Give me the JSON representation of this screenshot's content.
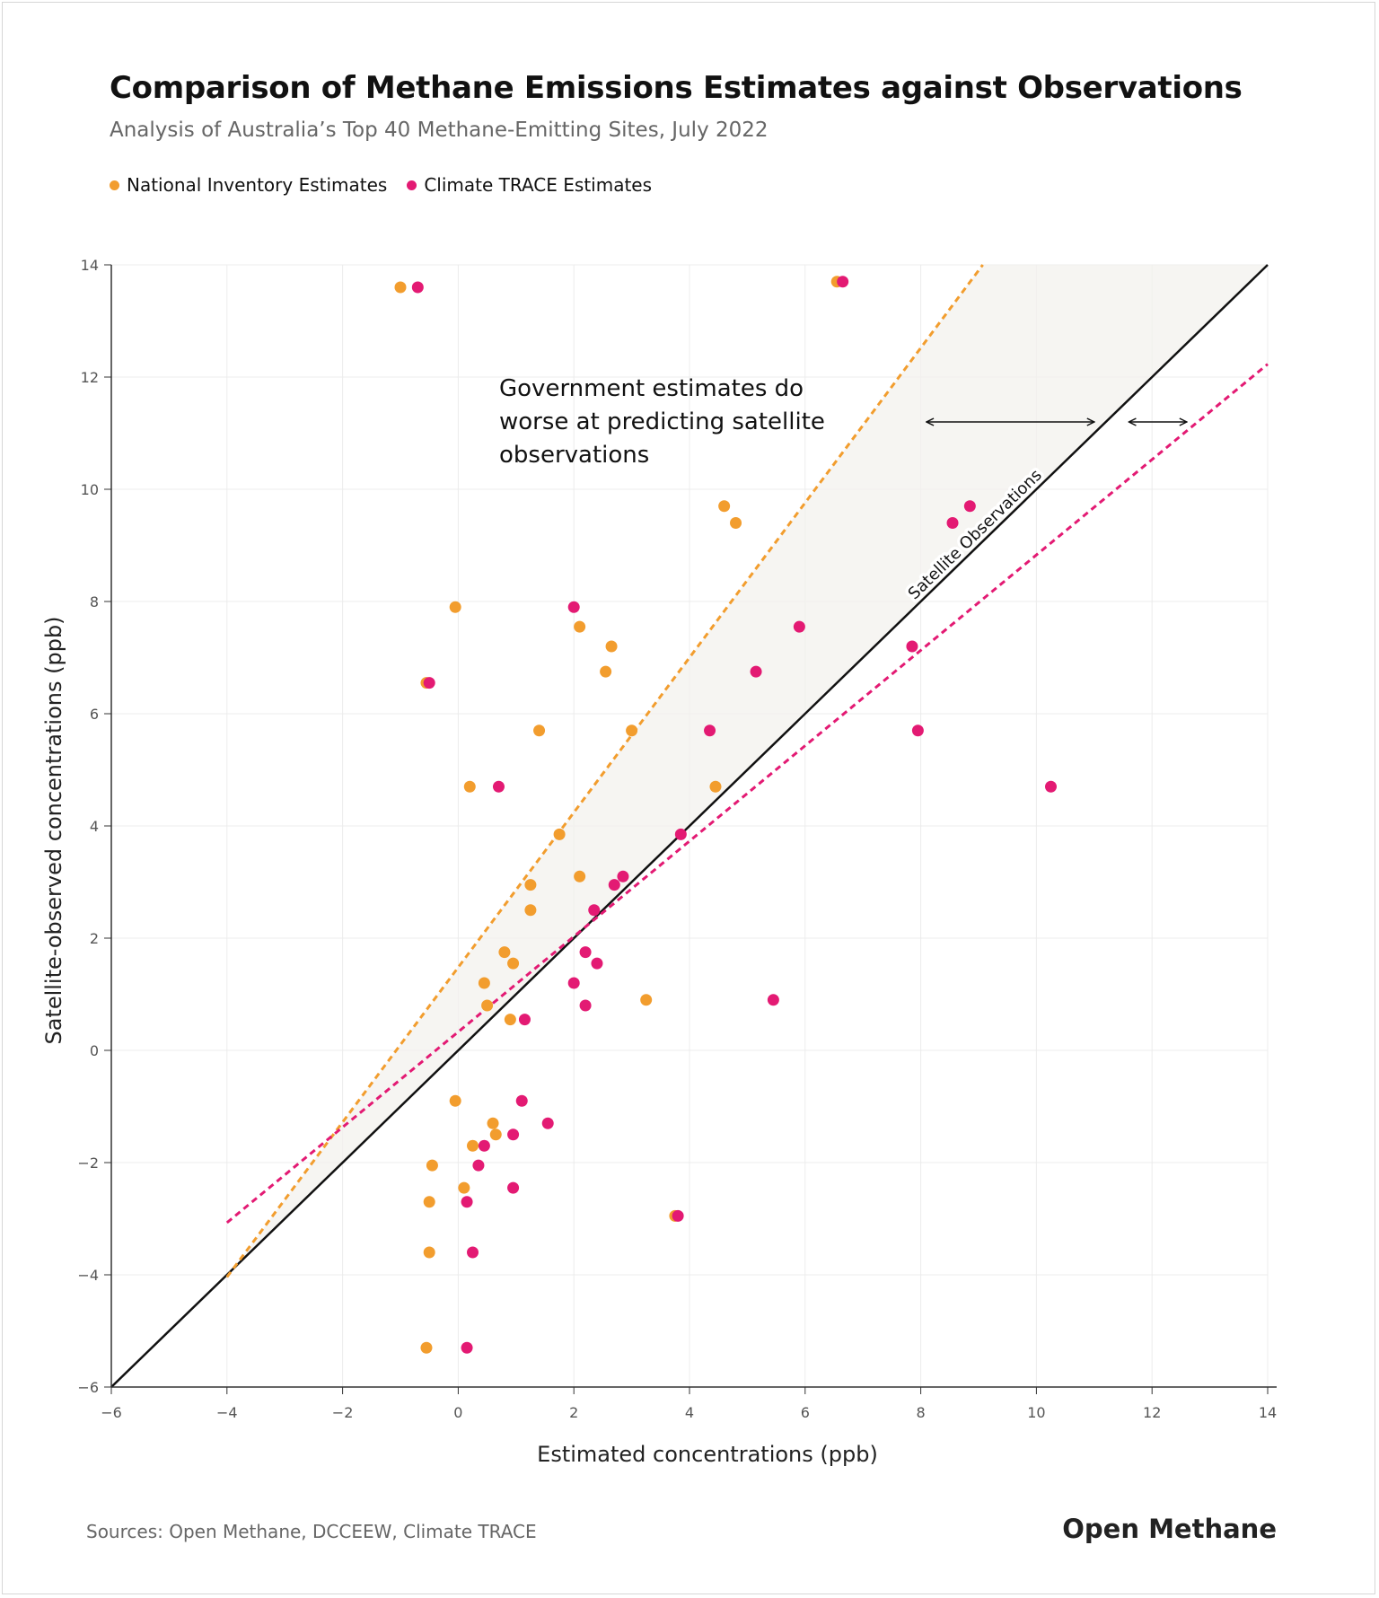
{
  "title": "Comparison of Methane Emissions Estimates against Observations",
  "subtitle": "Analysis of Australia’s Top 40 Methane-Emitting Sites, July 2022",
  "legend": [
    {
      "label": "National Inventory Estimates",
      "color": "#F29D2E"
    },
    {
      "label": "Climate TRACE Estimates",
      "color": "#E31A73"
    }
  ],
  "sources": "Sources: Open Methane, DCCEEW, Climate TRACE",
  "brand": "Open Methane",
  "chart_data": {
    "type": "scatter",
    "xlabel": "Estimated concentrations (ppb)",
    "ylabel": "Satellite-observed concentrations (ppb)",
    "xlim": [
      -6,
      14
    ],
    "ylim": [
      -6,
      14
    ],
    "xticks": [
      "−6",
      "−4",
      "−2",
      "0",
      "2",
      "4",
      "6",
      "8",
      "10",
      "12",
      "14"
    ],
    "yticks": [
      "−6",
      "−4",
      "−2",
      "0",
      "2",
      "4",
      "6",
      "8",
      "10",
      "12",
      "14"
    ],
    "grid": true,
    "annotation": "Government estimates do worse at predicting satellite observations",
    "reference_line_label": "Satellite Observations",
    "reference_line": {
      "slope": 1,
      "intercept": 0
    },
    "fit_lines": [
      {
        "series": "National Inventory Estimates",
        "color": "#F29D2E",
        "x_start": -4,
        "slope": 1.38,
        "intercept": 1.48
      },
      {
        "series": "Climate TRACE Estimates",
        "color": "#E31A73",
        "x_start": -4,
        "slope": 0.85,
        "intercept": 0.33
      }
    ],
    "arrows": [
      {
        "x_from": 8.1,
        "x_to": 11.0,
        "y": 11.2
      },
      {
        "x_from": 11.6,
        "x_to": 12.6,
        "y": 11.2
      }
    ],
    "series": [
      {
        "name": "National Inventory Estimates",
        "color": "#F29D2E",
        "points": [
          [
            -1.0,
            13.6
          ],
          [
            6.55,
            13.7
          ],
          [
            4.6,
            9.7
          ],
          [
            4.8,
            9.4
          ],
          [
            -0.05,
            7.9
          ],
          [
            2.1,
            7.55
          ],
          [
            2.65,
            7.2
          ],
          [
            2.55,
            6.75
          ],
          [
            -0.55,
            6.55
          ],
          [
            1.4,
            5.7
          ],
          [
            3.0,
            5.7
          ],
          [
            0.2,
            4.7
          ],
          [
            4.45,
            4.7
          ],
          [
            1.75,
            3.85
          ],
          [
            2.1,
            3.1
          ],
          [
            1.25,
            2.95
          ],
          [
            1.25,
            2.5
          ],
          [
            0.8,
            1.75
          ],
          [
            0.95,
            1.55
          ],
          [
            0.45,
            1.2
          ],
          [
            3.25,
            0.9
          ],
          [
            0.5,
            0.8
          ],
          [
            0.9,
            0.55
          ],
          [
            -0.05,
            -0.9
          ],
          [
            0.6,
            -1.3
          ],
          [
            0.65,
            -1.5
          ],
          [
            0.25,
            -1.7
          ],
          [
            -0.45,
            -2.05
          ],
          [
            0.1,
            -2.45
          ],
          [
            -0.5,
            -2.7
          ],
          [
            3.75,
            -2.95
          ],
          [
            -0.5,
            -3.6
          ],
          [
            -0.55,
            -5.3
          ]
        ]
      },
      {
        "name": "Climate TRACE Estimates",
        "color": "#E31A73",
        "points": [
          [
            -0.7,
            13.6
          ],
          [
            6.65,
            13.7
          ],
          [
            8.85,
            9.7
          ],
          [
            8.55,
            9.4
          ],
          [
            2.0,
            7.9
          ],
          [
            5.9,
            7.55
          ],
          [
            7.85,
            7.2
          ],
          [
            5.15,
            6.75
          ],
          [
            -0.5,
            6.55
          ],
          [
            4.35,
            5.7
          ],
          [
            7.95,
            5.7
          ],
          [
            0.7,
            4.7
          ],
          [
            10.25,
            4.7
          ],
          [
            3.85,
            3.85
          ],
          [
            2.85,
            3.1
          ],
          [
            2.7,
            2.95
          ],
          [
            2.35,
            2.5
          ],
          [
            2.2,
            1.75
          ],
          [
            2.4,
            1.55
          ],
          [
            2.0,
            1.2
          ],
          [
            5.45,
            0.9
          ],
          [
            2.2,
            0.8
          ],
          [
            1.15,
            0.55
          ],
          [
            1.1,
            -0.9
          ],
          [
            1.55,
            -1.3
          ],
          [
            0.95,
            -1.5
          ],
          [
            0.45,
            -1.7
          ],
          [
            0.35,
            -2.05
          ],
          [
            0.95,
            -2.45
          ],
          [
            0.15,
            -2.7
          ],
          [
            3.8,
            -2.95
          ],
          [
            0.25,
            -3.6
          ],
          [
            0.15,
            -5.3
          ]
        ]
      }
    ]
  }
}
